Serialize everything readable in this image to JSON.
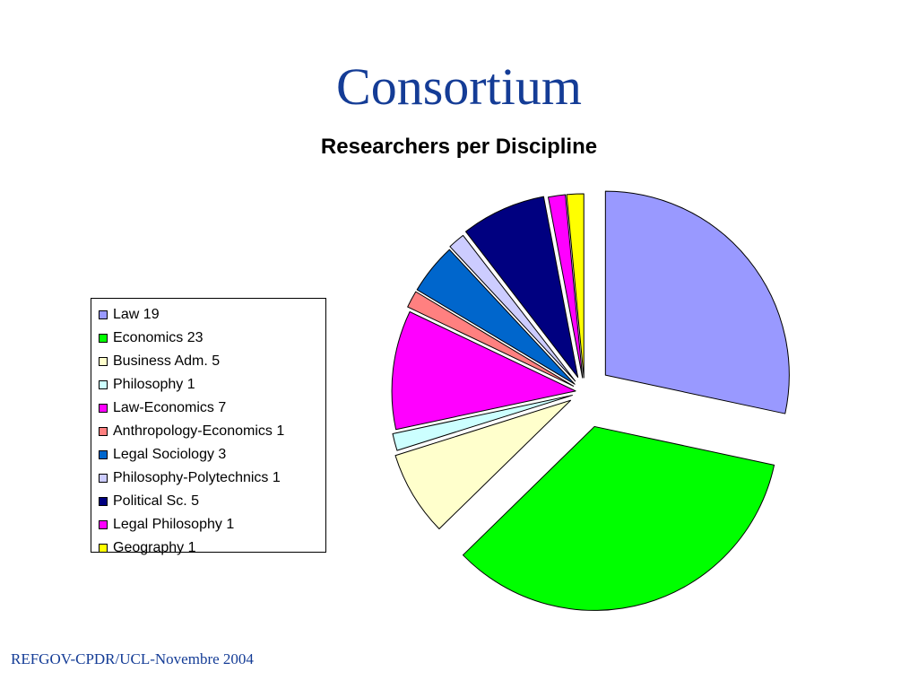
{
  "slide": {
    "title": "Consortium",
    "footer": "REFGOV-CPDR/UCL-Novembre 2004"
  },
  "chart_data": {
    "type": "pie",
    "title": "Researchers per Discipline",
    "exploded": true,
    "legend_position": "left",
    "slices": [
      {
        "label": "Law",
        "value": 19,
        "legend": "Law 19",
        "color": "#9999ff"
      },
      {
        "label": "Economics",
        "value": 23,
        "legend": "Economics 23",
        "color": "#00ff00"
      },
      {
        "label": "Business Adm.",
        "value": 5,
        "legend": "Business Adm. 5",
        "color": "#ffffcc"
      },
      {
        "label": "Philosophy",
        "value": 1,
        "legend": "Philosophy 1",
        "color": "#ccffff"
      },
      {
        "label": "Law-Economics",
        "value": 7,
        "legend": "Law-Economics 7",
        "color": "#ff00ff"
      },
      {
        "label": "Anthropology-Economics",
        "value": 1,
        "legend": "Anthropology-Economics 1",
        "color": "#ff8080"
      },
      {
        "label": "Legal Sociology",
        "value": 3,
        "legend": "Legal Sociology 3",
        "color": "#0066cc"
      },
      {
        "label": "Philosophy-Polytechnics",
        "value": 1,
        "legend": "Philosophy-Polytechnics 1",
        "color": "#ccccff"
      },
      {
        "label": "Political Sc.",
        "value": 5,
        "legend": "Political Sc. 5",
        "color": "#000080"
      },
      {
        "label": "Legal Philosophy",
        "value": 1,
        "legend": "Legal Philosophy 1",
        "color": "#ff00ff"
      },
      {
        "label": "Geography",
        "value": 1,
        "legend": "Geography 1",
        "color": "#ffff00"
      }
    ]
  }
}
